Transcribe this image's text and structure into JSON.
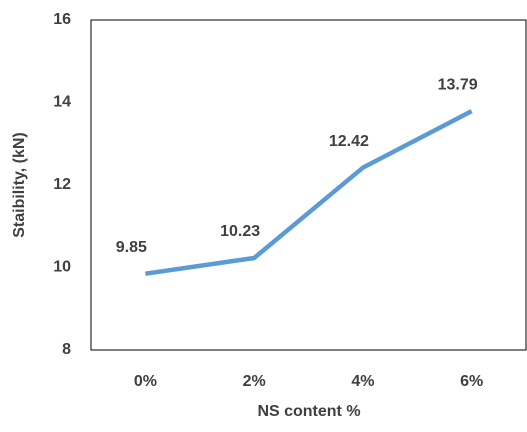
{
  "chart_data": {
    "type": "line",
    "x_label": "NS content %",
    "y_label": "Staibility, (kN)",
    "categories": [
      "0%",
      "2%",
      "4%",
      "6%"
    ],
    "values": [
      9.85,
      10.23,
      12.42,
      13.79
    ],
    "color": "#5b9bd5",
    "ylim": [
      8,
      16
    ],
    "yticks": [
      8,
      10,
      12,
      14,
      16
    ],
    "grid": false
  }
}
